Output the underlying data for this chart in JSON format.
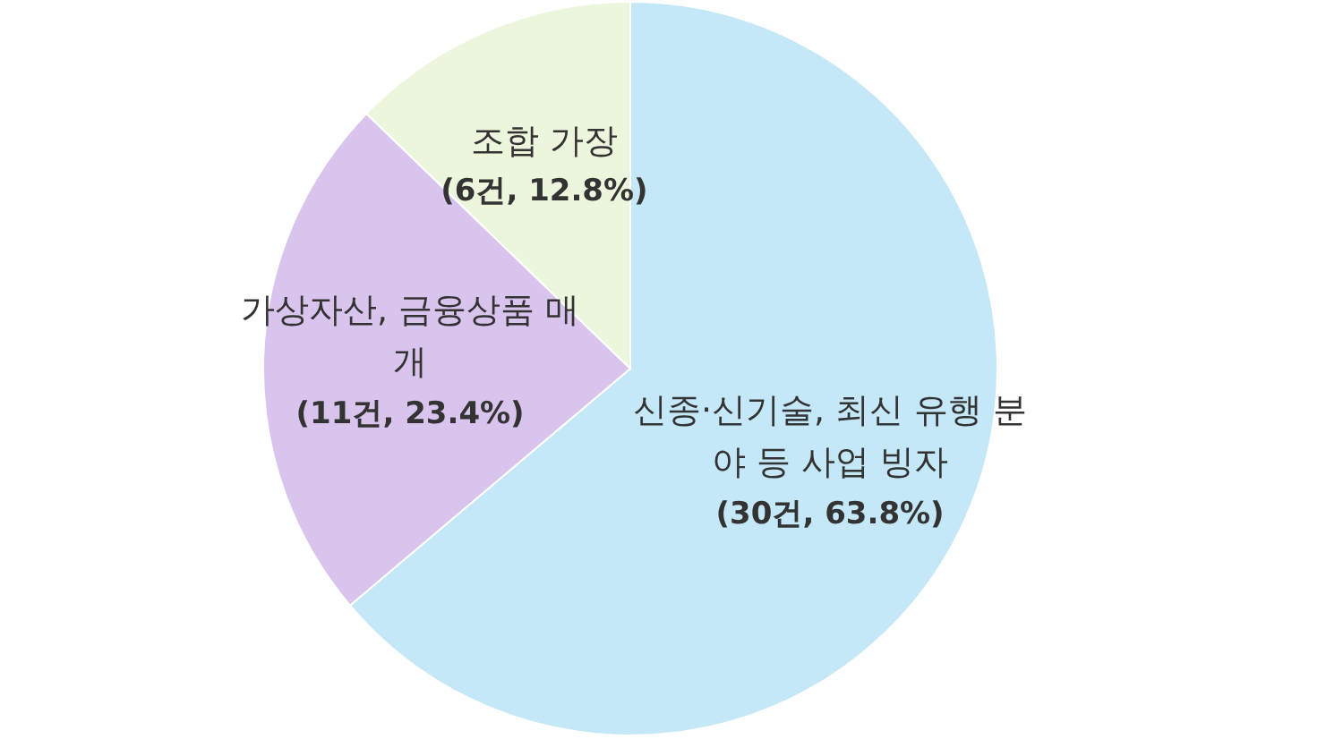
{
  "chart_data": {
    "type": "pie",
    "categories": [
      "신종·신기술, 최신 유행 분야 등 사업 빙자",
      "가상자산, 금융상품 매개",
      "조합 가장"
    ],
    "values": [
      30,
      11,
      6
    ],
    "value_labels": [
      "(30건, 63.8%)",
      "(11건, 23.4%)",
      "(6건, 12.8%)"
    ],
    "colors": [
      "#c4e8f8",
      "#d9c4ee",
      "#ecf6dc"
    ]
  }
}
